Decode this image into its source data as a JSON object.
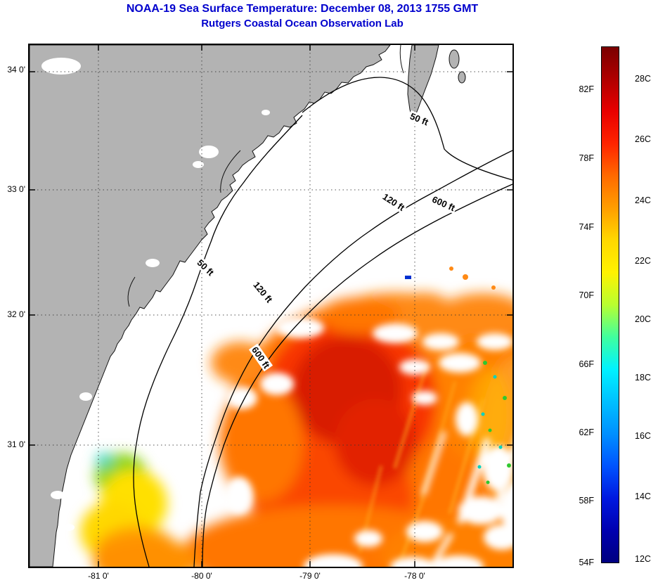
{
  "title": {
    "line1": "NOAA-19 Sea Surface Temperature:  December 08, 2013 1755 GMT",
    "line2": "Rutgers Coastal Ocean Observation Lab",
    "color": "#0000cd"
  },
  "axes": {
    "y_ticks": [
      "34 0'",
      "33 0'",
      "32 0'",
      "31 0'"
    ],
    "x_ticks": [
      "-81 0'",
      "-80 0'",
      "-79 0'",
      "-78 0'"
    ]
  },
  "contours": {
    "labels": [
      "50 ft",
      "120 ft",
      "600 ft",
      "50 ft",
      "120 ft",
      "600 ft"
    ]
  },
  "colorbar": {
    "fahrenheit": [
      "82F",
      "78F",
      "74F",
      "70F",
      "66F",
      "62F",
      "58F",
      "54F"
    ],
    "celsius": [
      "28C",
      "26C",
      "24C",
      "22C",
      "20C",
      "18C",
      "16C",
      "14C",
      "12C"
    ],
    "gradient": [
      "#7a0000",
      "#b00000",
      "#e80000",
      "#ff2400",
      "#ff6a00",
      "#ff9e00",
      "#ffd800",
      "#fff200",
      "#b8ff30",
      "#40ff9e",
      "#00f2ff",
      "#00c0ff",
      "#0090ff",
      "#0054ff",
      "#0018e0",
      "#0000b0",
      "#000080"
    ]
  },
  "map_colors": {
    "land": "#b3b3b3",
    "no_data_clouds": "#ffffff",
    "warm_core": "#d81b00",
    "warm_mid": "#f83600",
    "warm_edge": "#ff7600",
    "cool_patch_yellow": "#ffe000",
    "cool_patch_green": "#8fd51e"
  }
}
